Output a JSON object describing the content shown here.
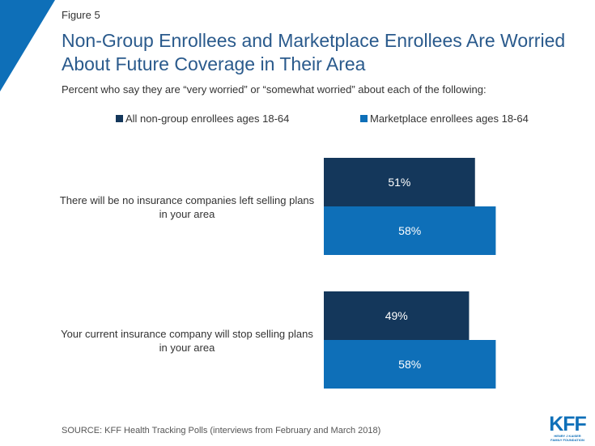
{
  "figure_label": "Figure 5",
  "title": "Non-Group Enrollees and Marketplace Enrollees Are Worried About Future Coverage in Their Area",
  "subtitle": "Percent who say they are “very worried” or “somewhat worried” about each of the following:",
  "source": "SOURCE: KFF Health Tracking Polls (interviews from February and March 2018)",
  "logo": {
    "mark": "KFF",
    "line1": "HENRY J KAISER",
    "line2": "FAMILY FOUNDATION"
  },
  "colors": {
    "series_a": "#14375b",
    "series_b": "#0e6fb8",
    "accent": "#0e6fb8",
    "title": "#2a5a8c"
  },
  "chart_data": {
    "type": "bar",
    "orientation": "horizontal",
    "categories": [
      "There will be no insurance companies left selling plans in your area",
      "Your current insurance company will stop selling plans in your area"
    ],
    "series": [
      {
        "name": "All non-group enrollees ages 18-64",
        "values": [
          51,
          49
        ],
        "labels": [
          "51%",
          "49%"
        ]
      },
      {
        "name": "Marketplace enrollees ages 18-64",
        "values": [
          58,
          58
        ],
        "labels": [
          "58%",
          "58%"
        ]
      }
    ],
    "units": "%",
    "xlim": [
      0,
      100
    ],
    "grid": false,
    "legend_position": "top"
  }
}
